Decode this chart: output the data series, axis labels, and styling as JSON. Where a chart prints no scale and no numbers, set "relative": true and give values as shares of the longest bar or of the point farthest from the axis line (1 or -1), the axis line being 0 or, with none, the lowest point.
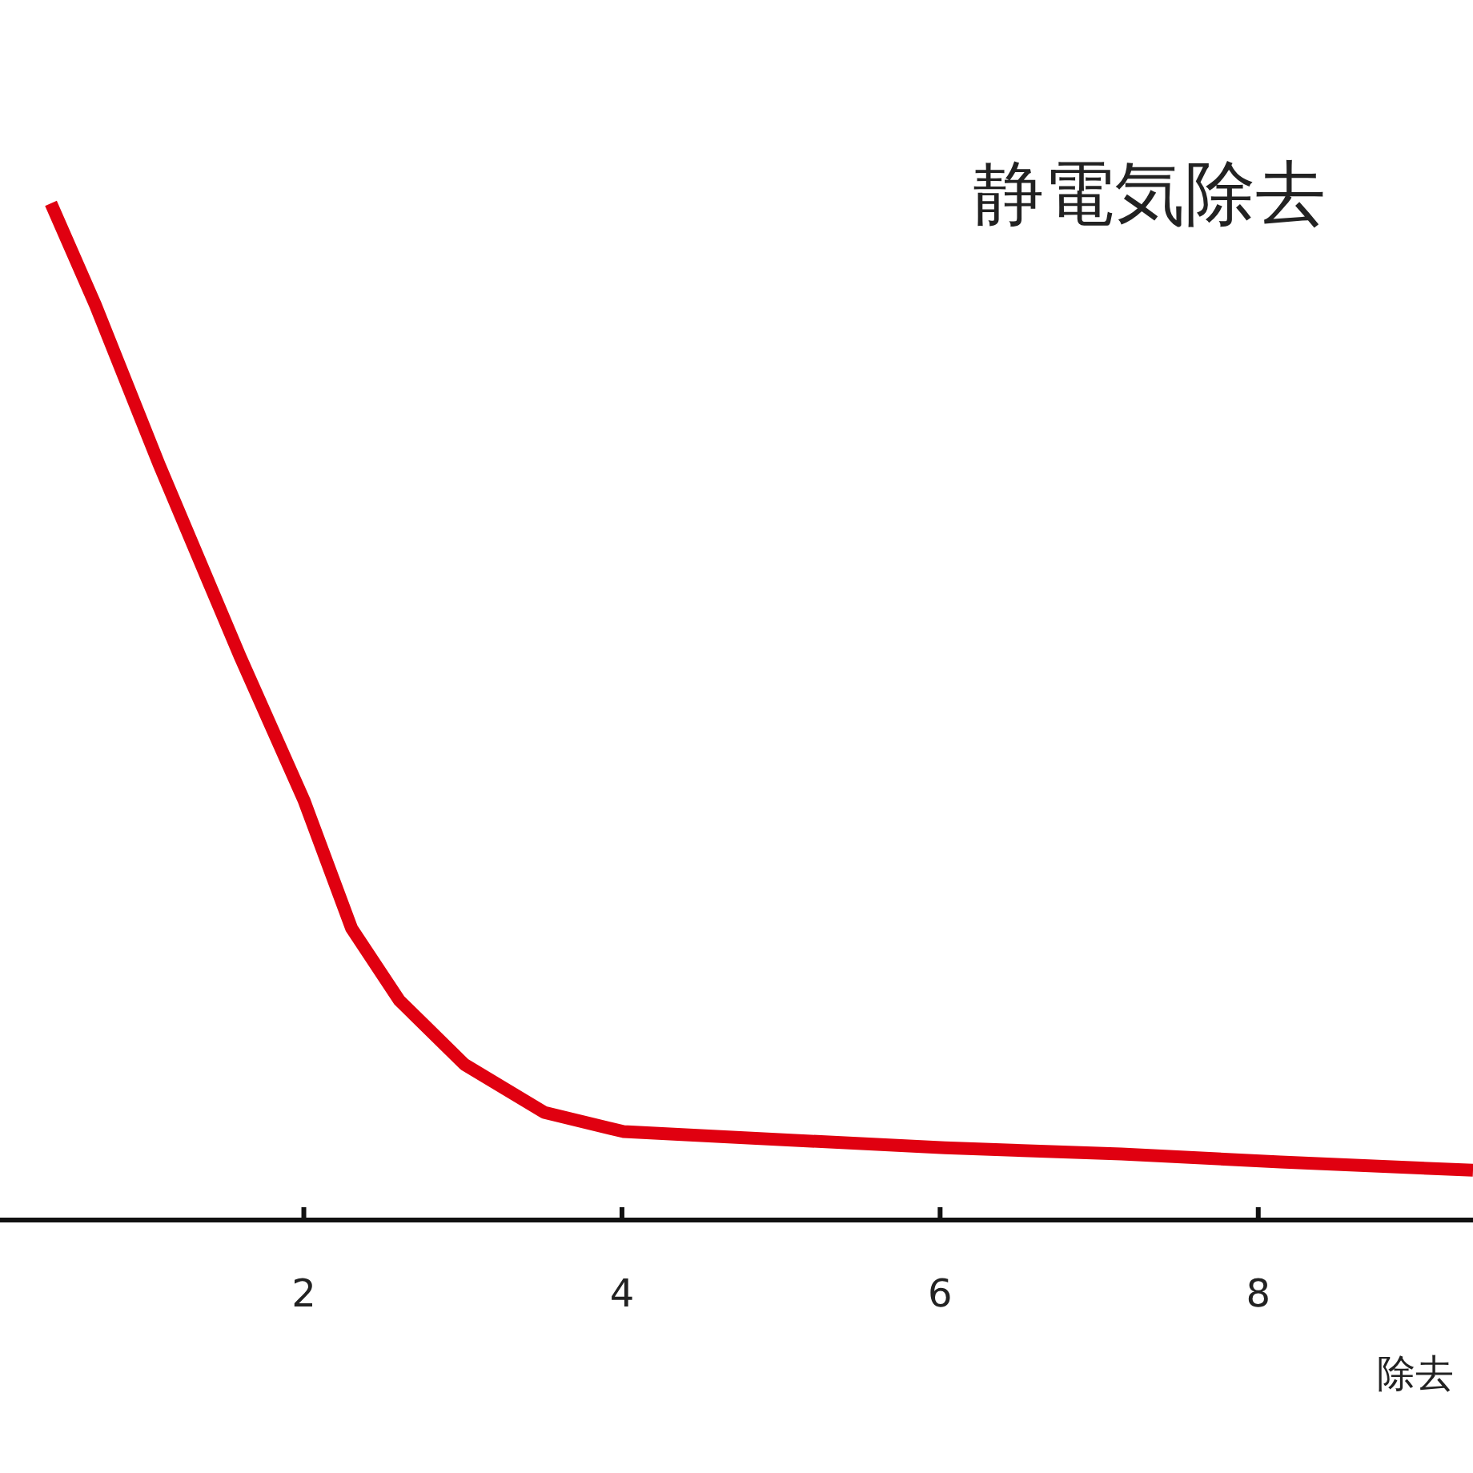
{
  "chart_data": {
    "type": "line",
    "title": "静電気除去",
    "xlabel": "除去",
    "relative": true,
    "xlim": [
      0.09,
      9.35
    ],
    "xticks": [
      2,
      4,
      6,
      8
    ],
    "x": [
      0.41,
      0.69,
      1.09,
      1.6,
      2.0,
      2.3,
      2.6,
      3.01,
      3.51,
      4.01,
      4.62,
      6.03,
      7.14,
      8.14,
      9.35
    ],
    "series": [
      {
        "color": "#e00010",
        "values": [
          1,
          0.9,
          0.743,
          0.554,
          0.413,
          0.287,
          0.216,
          0.153,
          0.106,
          0.087,
          0.082,
          0.071,
          0.065,
          0.057,
          0.049
        ]
      }
    ]
  }
}
